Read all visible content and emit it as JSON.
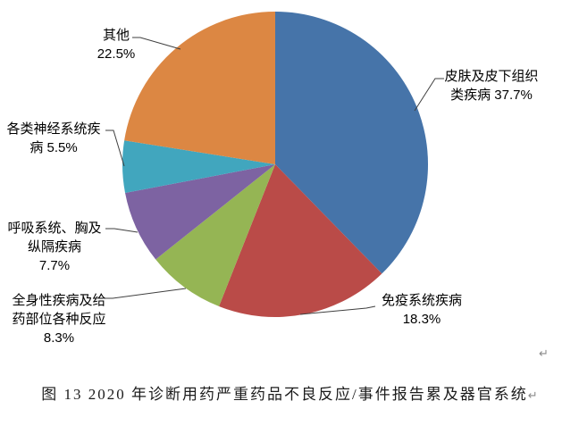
{
  "chart_data": {
    "type": "pie",
    "title": "图 13  2020 年诊断用药严重药品不良反应/事件报告累及器官系统",
    "start_angle_deg": 0,
    "direction": "clockwise",
    "legend": "none",
    "label_style": "outside callouts with leader lines",
    "slices": [
      {
        "id": "skin",
        "label": "皮肤及皮下组织类疾病",
        "value": 37.7,
        "color": "#4674A9",
        "callout_lines": [
          "皮肤及皮下组织",
          "类疾病 37.7%"
        ]
      },
      {
        "id": "immune",
        "label": "免疫系统疾病",
        "value": 18.3,
        "color": "#BA4B48",
        "callout_lines": [
          "免疫系统疾病",
          "18.3%"
        ]
      },
      {
        "id": "systemic",
        "label": "全身性疾病及给药部位各种反应",
        "value": 8.3,
        "color": "#95B554",
        "callout_lines": [
          "全身性疾病及给",
          "药部位各种反应",
          "8.3%"
        ]
      },
      {
        "id": "respiratory",
        "label": "呼吸系统、胸及纵隔疾病",
        "value": 7.7,
        "color": "#7D63A2",
        "callout_lines": [
          "呼吸系统、胸及",
          "纵隔疾病",
          "7.7%"
        ]
      },
      {
        "id": "neuro",
        "label": "各类神经系统疾病",
        "value": 5.5,
        "color": "#41A6BE",
        "callout_lines": [
          "各类神经系统疾",
          "病 5.5%"
        ]
      },
      {
        "id": "other",
        "label": "其他",
        "value": 22.5,
        "color": "#DC8743",
        "callout_lines": [
          "其他",
          "22.5%"
        ]
      }
    ]
  },
  "formatting": {
    "return_mark": "↵"
  }
}
